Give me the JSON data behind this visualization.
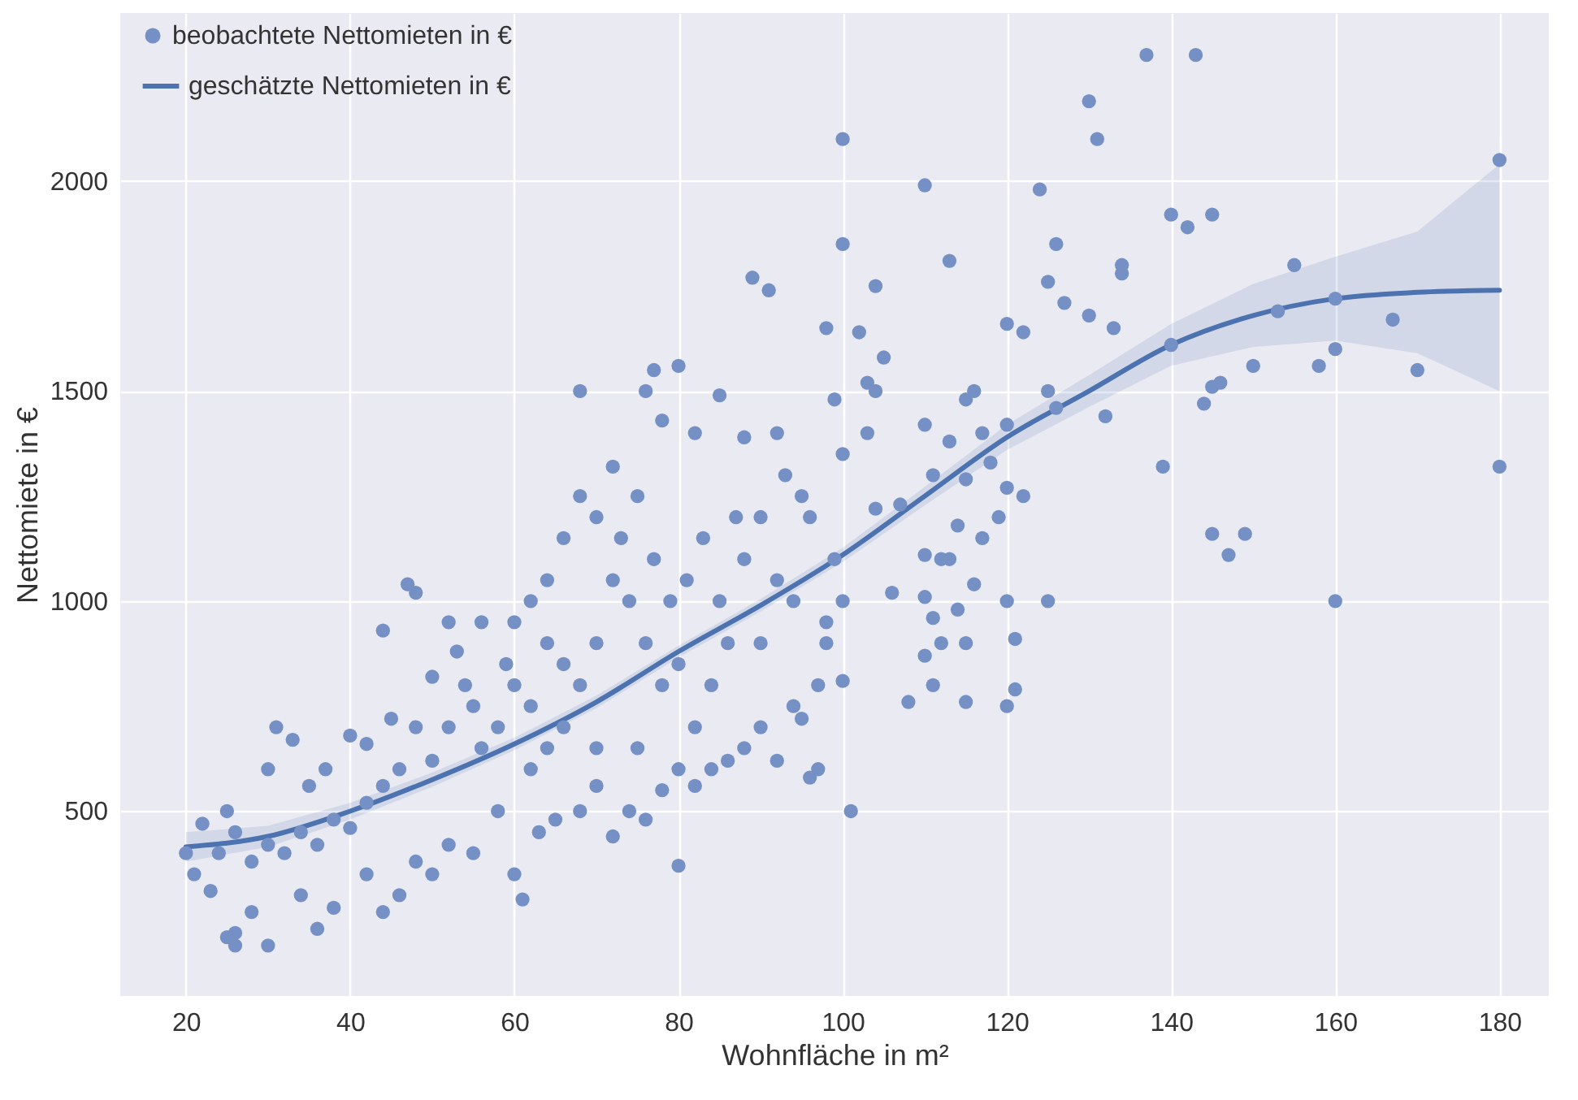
{
  "chart_data": {
    "type": "scatter",
    "xlabel": "Wohnfläche in m²",
    "ylabel": "Nettomiete in €",
    "xlim": [
      12,
      186
    ],
    "ylim": [
      60,
      2400
    ],
    "xticks": [
      20,
      40,
      60,
      80,
      100,
      120,
      140,
      160,
      180
    ],
    "yticks": [
      500,
      1000,
      1500,
      2000
    ],
    "grid": true,
    "legend": "top left",
    "series": [
      {
        "name": "beobachtete Nettomieten in €",
        "marker": "circle",
        "color": "#7590c4",
        "x": [
          137,
          143,
          130,
          131,
          100,
          180,
          110,
          124,
          100,
          113,
          126,
          140,
          142,
          145,
          134,
          134,
          155,
          89,
          91,
          104,
          120,
          122,
          125,
          127,
          130,
          133,
          153,
          160,
          167,
          140,
          158,
          160,
          170,
          145,
          146,
          150,
          139,
          180,
          145,
          147,
          149,
          160,
          144,
          132,
          125,
          126,
          120,
          117,
          115,
          116,
          110,
          113,
          118,
          111,
          115,
          120,
          122,
          119,
          114,
          117,
          110,
          112,
          113,
          116,
          120,
          125,
          110,
          111,
          114,
          112,
          115,
          121,
          110,
          111,
          115,
          120,
          121,
          108,
          106,
          104,
          105,
          103,
          102,
          98,
          99,
          104,
          101,
          97,
          95,
          97,
          100,
          98,
          99,
          95,
          93,
          96,
          92,
          88,
          85,
          80,
          76,
          77,
          68,
          78,
          82,
          75,
          72,
          70,
          68,
          66,
          64,
          62,
          60,
          56,
          52,
          48,
          47,
          44,
          40,
          42,
          37,
          35,
          30,
          31,
          33,
          25,
          22,
          20,
          21,
          23,
          25,
          26,
          26,
          28,
          30,
          34,
          36,
          38,
          42,
          44,
          46,
          48,
          50,
          52,
          55,
          58,
          60,
          61,
          63,
          65,
          68,
          70,
          72,
          74,
          76,
          78,
          80,
          82,
          84,
          86,
          88,
          90,
          92,
          94,
          96,
          98,
          86,
          84,
          80,
          82,
          78,
          76,
          74,
          72,
          70,
          68,
          66,
          64,
          62,
          60,
          58,
          56,
          54,
          52,
          50,
          48,
          46,
          44,
          42,
          40,
          38,
          36,
          34,
          32,
          30,
          28,
          26,
          24,
          85,
          88,
          90,
          92,
          94,
          87,
          83,
          81,
          79,
          77,
          73,
          66,
          64,
          59,
          55,
          53,
          50,
          45,
          62,
          70,
          75,
          80,
          90,
          100,
          100,
          107,
          103
        ],
        "values": [
          2300,
          2300,
          2190,
          2100,
          2100,
          2050,
          1990,
          1980,
          1850,
          1810,
          1850,
          1920,
          1890,
          1920,
          1780,
          1800,
          1800,
          1770,
          1740,
          1750,
          1660,
          1640,
          1760,
          1710,
          1680,
          1650,
          1690,
          1720,
          1670,
          1610,
          1560,
          1600,
          1550,
          1510,
          1520,
          1560,
          1320,
          1320,
          1160,
          1110,
          1160,
          1000,
          1470,
          1440,
          1500,
          1460,
          1420,
          1400,
          1480,
          1500,
          1420,
          1380,
          1330,
          1300,
          1290,
          1270,
          1250,
          1200,
          1180,
          1150,
          1110,
          1100,
          1100,
          1040,
          1000,
          1000,
          1010,
          960,
          980,
          900,
          900,
          910,
          870,
          800,
          760,
          750,
          790,
          760,
          1020,
          1220,
          1580,
          1520,
          1640,
          1650,
          1480,
          1500,
          500,
          600,
          720,
          800,
          810,
          950,
          1100,
          1250,
          1300,
          1200,
          1400,
          1390,
          1490,
          1560,
          1500,
          1550,
          1500,
          1430,
          1400,
          1250,
          1320,
          1200,
          1250,
          1150,
          1050,
          1000,
          950,
          950,
          950,
          1020,
          1040,
          930,
          680,
          660,
          600,
          560,
          600,
          700,
          670,
          500,
          470,
          400,
          350,
          310,
          200,
          180,
          210,
          260,
          180,
          300,
          220,
          270,
          350,
          260,
          300,
          380,
          350,
          420,
          400,
          500,
          350,
          290,
          450,
          480,
          500,
          560,
          440,
          500,
          480,
          550,
          370,
          560,
          600,
          620,
          650,
          700,
          620,
          750,
          580,
          900,
          900,
          800,
          850,
          700,
          800,
          900,
          1000,
          1050,
          900,
          800,
          700,
          650,
          750,
          800,
          700,
          650,
          800,
          700,
          620,
          700,
          600,
          560,
          520,
          460,
          480,
          420,
          450,
          400,
          420,
          380,
          450,
          400,
          1000,
          1100,
          1200,
          1050,
          1000,
          1200,
          1150,
          1050,
          1000,
          1100,
          1150,
          850,
          900,
          850,
          750,
          880,
          820,
          720,
          600,
          650,
          650,
          600,
          900,
          1350,
          1000,
          1230,
          1400
        ]
      },
      {
        "name": "geschätzte Nettomieten in €",
        "type": "line",
        "marker": "none",
        "color": "#4c72b0",
        "x": [
          20,
          30,
          40,
          50,
          60,
          70,
          80,
          90,
          100,
          110,
          120,
          130,
          140,
          150,
          160,
          170,
          180
        ],
        "values": [
          415,
          440,
          500,
          575,
          660,
          760,
          880,
          990,
          1110,
          1250,
          1390,
          1500,
          1610,
          1680,
          1720,
          1735,
          1740
        ],
        "lower": [
          380,
          415,
          480,
          558,
          645,
          745,
          866,
          975,
          1093,
          1228,
          1360,
          1462,
          1560,
          1605,
          1620,
          1590,
          1500
        ],
        "upper": [
          450,
          465,
          520,
          592,
          675,
          775,
          894,
          1005,
          1127,
          1272,
          1420,
          1538,
          1660,
          1755,
          1820,
          1880,
          2040
        ]
      }
    ]
  }
}
